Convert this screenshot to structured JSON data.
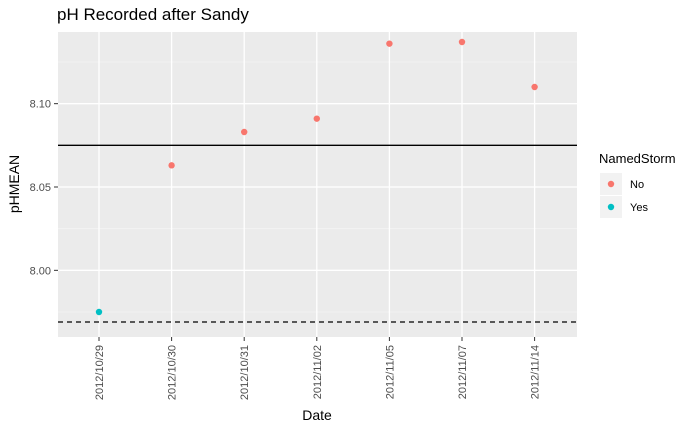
{
  "chart_data": {
    "type": "scatter",
    "title": "pH Recorded after Sandy",
    "xlabel": "Date",
    "ylabel": "pHMEAN",
    "categories": [
      "2012/10/29",
      "2012/10/30",
      "2012/10/31",
      "2012/11/02",
      "2012/11/05",
      "2012/11/07",
      "2012/11/14"
    ],
    "points": [
      {
        "x": "2012/10/29",
        "y": 7.975,
        "group": "Yes"
      },
      {
        "x": "2012/10/30",
        "y": 8.063,
        "group": "No"
      },
      {
        "x": "2012/10/31",
        "y": 8.083,
        "group": "No"
      },
      {
        "x": "2012/11/02",
        "y": 8.091,
        "group": "No"
      },
      {
        "x": "2012/11/05",
        "y": 8.136,
        "group": "No"
      },
      {
        "x": "2012/11/07",
        "y": 8.137,
        "group": "No"
      },
      {
        "x": "2012/11/14",
        "y": 8.11,
        "group": "No"
      }
    ],
    "y_ticks": [
      "8.00",
      "8.05",
      "8.10"
    ],
    "ylim": [
      7.96,
      8.143
    ],
    "hlines": [
      {
        "y": 8.075,
        "style": "solid"
      },
      {
        "y": 7.969,
        "style": "dashed"
      }
    ],
    "legend": {
      "title": "NamedStorm",
      "placement": "right",
      "entries": [
        {
          "label": "No",
          "color": "#F8766D"
        },
        {
          "label": "Yes",
          "color": "#00BFC4"
        }
      ]
    },
    "grid": true,
    "colors": {
      "panel_bg": "#EBEBEB",
      "grid_major": "#FFFFFF",
      "grid_minor": "#F5F5F5"
    }
  }
}
